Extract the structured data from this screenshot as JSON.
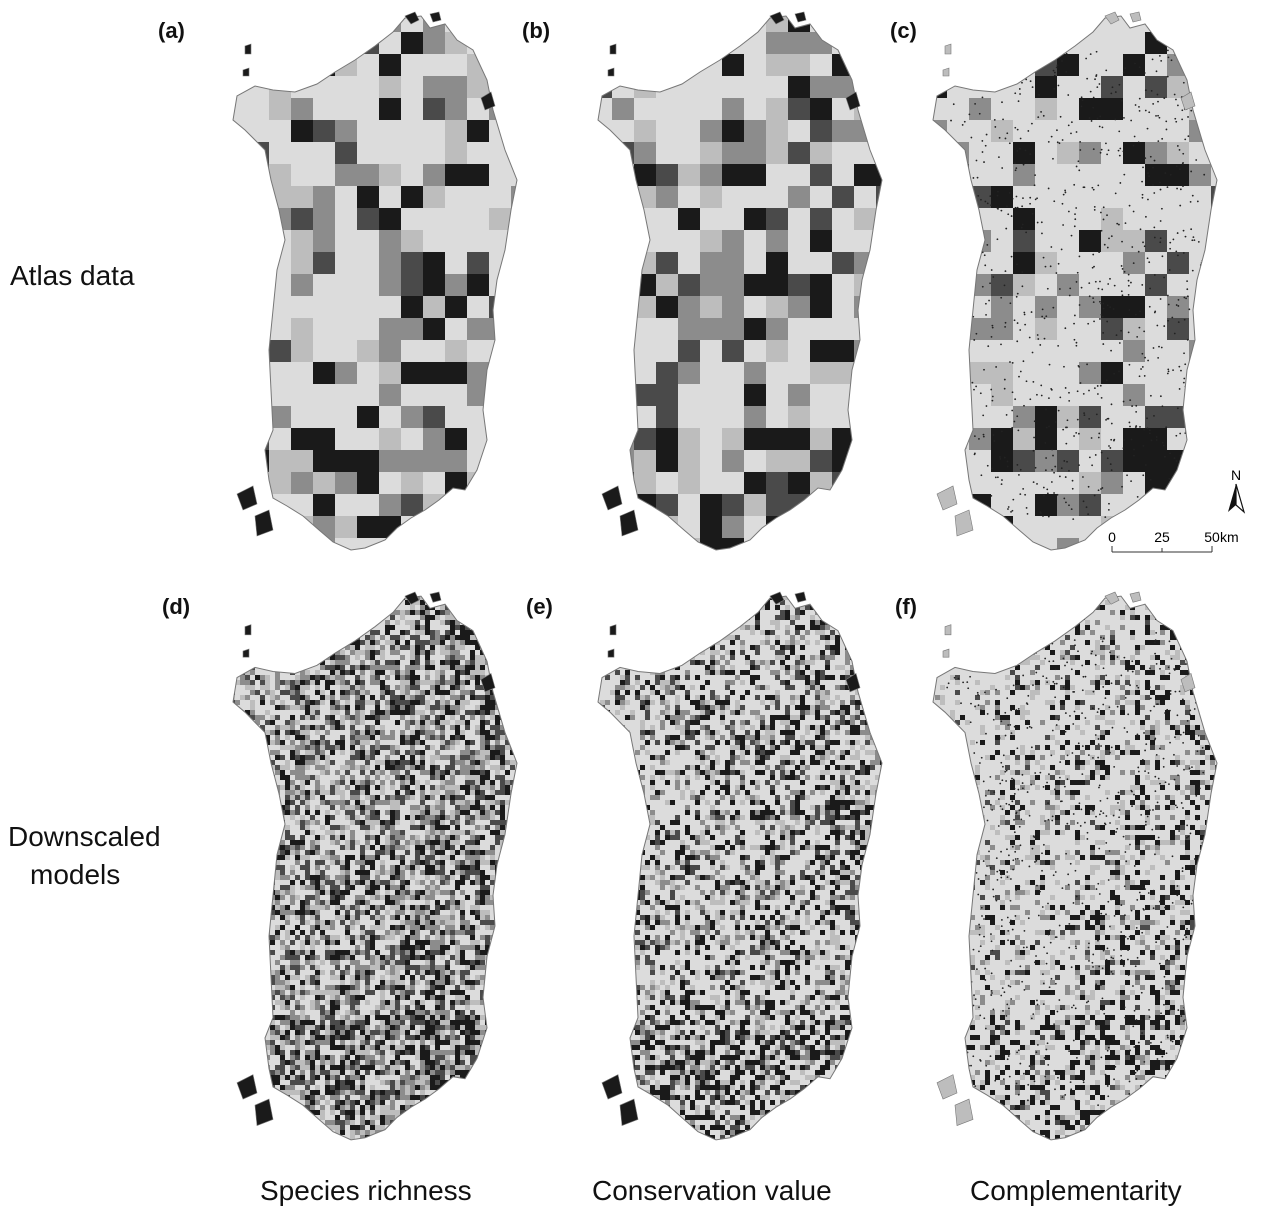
{
  "panels": [
    {
      "id": "a",
      "label": "(a)",
      "row": "atlas"
    },
    {
      "id": "b",
      "label": "(b)",
      "row": "atlas"
    },
    {
      "id": "c",
      "label": "(c)",
      "row": "atlas"
    },
    {
      "id": "d",
      "label": "(d)",
      "row": "model"
    },
    {
      "id": "e",
      "label": "(e)",
      "row": "model"
    },
    {
      "id": "f",
      "label": "(f)",
      "row": "model"
    }
  ],
  "rows": {
    "atlas": "Atlas data",
    "model_line1": "Downscaled",
    "model_line2": "models"
  },
  "columns": {
    "c1": "Species richness",
    "c2": "Conservation value",
    "c3": "Complementarity"
  },
  "north_arrow": "N",
  "scale_bar": {
    "ticks": [
      "0",
      "25",
      "50"
    ],
    "unit": "km"
  },
  "colors": {
    "land": "#dcdcdc",
    "light": "#bdbdbd",
    "mid": "#8c8c8c",
    "dark": "#4a4a4a",
    "black": "#1a1a1a",
    "coast": "#777777"
  }
}
